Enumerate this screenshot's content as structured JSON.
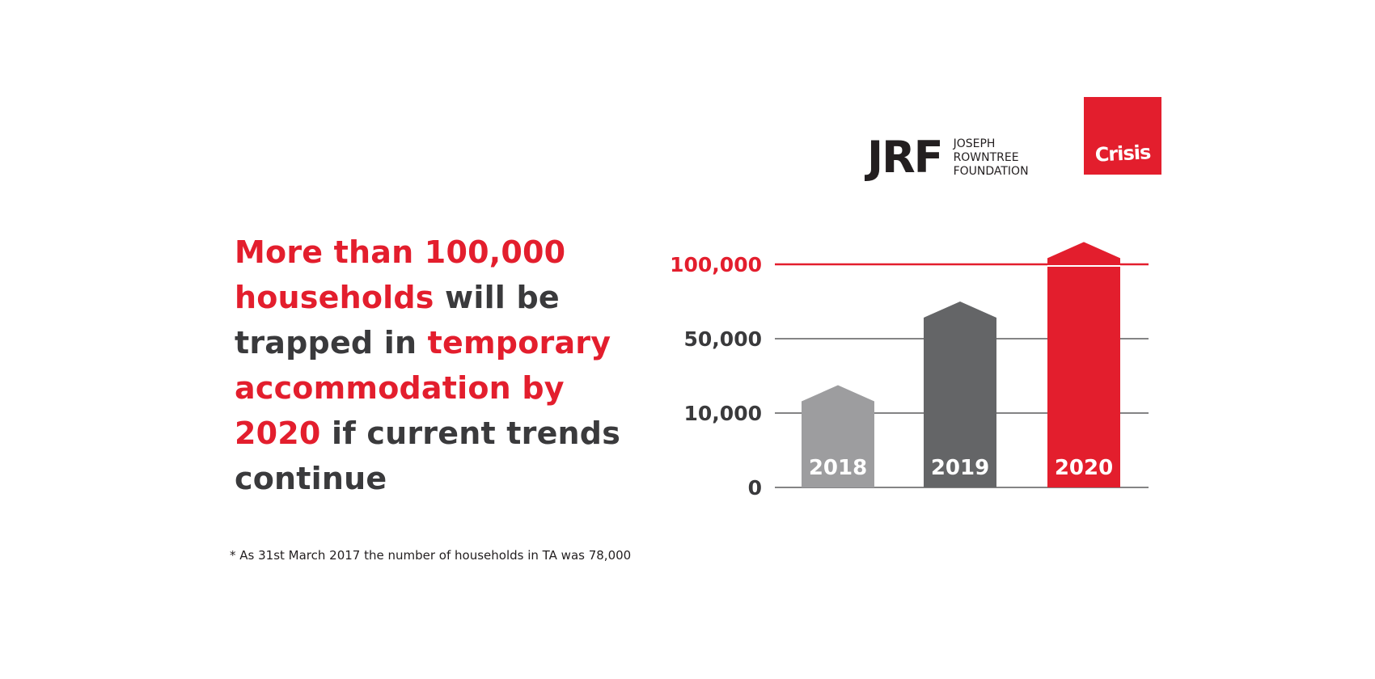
{
  "headline": {
    "p1": "More than 100,000",
    "p2": "households",
    "p3": " will be trapped in ",
    "p4": "temporary accommodation by 2020",
    "p5": " if current trends continue"
  },
  "footnote": "* As 31st March 2017 the number of households in TA was 78,000",
  "logos": {
    "jrf_mark": "JRF",
    "jrf_name_lines": [
      "JOSEPH",
      "ROWNTREE",
      "FOUNDATION"
    ],
    "crisis": "Crisis"
  },
  "colors": {
    "red": "#e31e2d",
    "dark": "#3a3a3c",
    "grey_2018": "#9d9d9f",
    "grey_2019": "#646567"
  },
  "chart_data": {
    "type": "bar",
    "categories": [
      "2018",
      "2019",
      "2020"
    ],
    "values": [
      25000,
      75000,
      115000
    ],
    "y_tick_values": [
      0,
      10000,
      50000,
      100000
    ],
    "y_tick_labels": [
      "0",
      "10,000",
      "50,000",
      "100,000"
    ],
    "highlight_line": 100000,
    "grid": true,
    "bar_colors": [
      "#9d9d9f",
      "#646567",
      "#e31e2d"
    ],
    "bar_label_color": "#ffffff"
  }
}
